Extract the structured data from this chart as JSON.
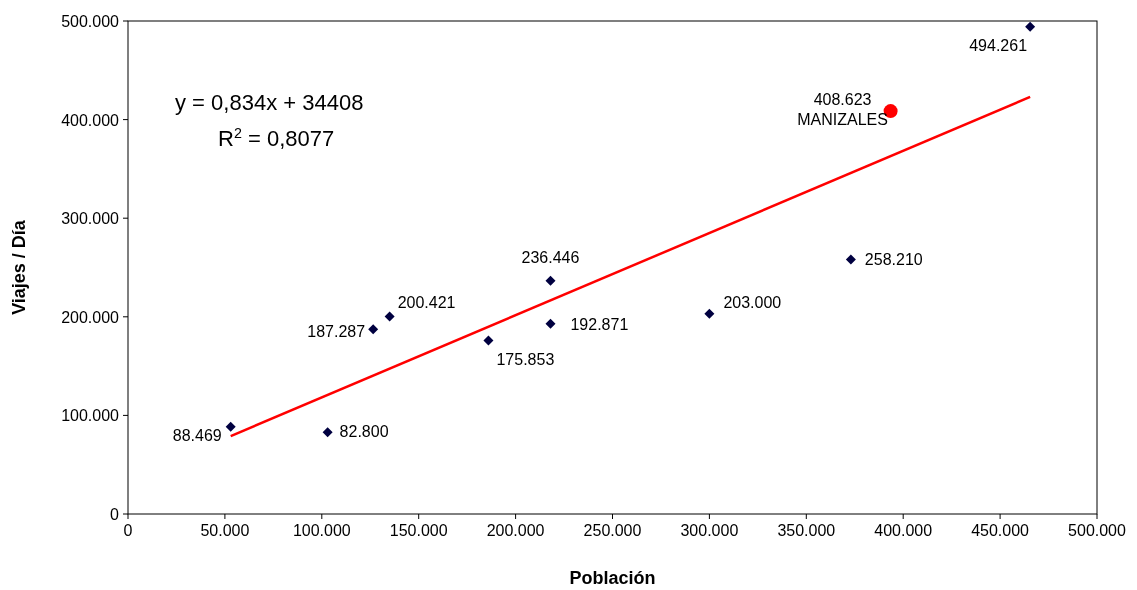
{
  "chart_data": {
    "type": "scatter",
    "xlabel": "Población",
    "ylabel": "Viajes / Día",
    "xlim": [
      0,
      500000
    ],
    "ylim": [
      0,
      500000
    ],
    "xticks": [
      0,
      {
        "value": 50000,
        "label": "50.000"
      },
      {
        "value": 100000,
        "label": "100.000"
      },
      {
        "value": 150000,
        "label": "150.000"
      },
      {
        "value": 200000,
        "label": "200.000"
      },
      {
        "value": 250000,
        "label": "250.000"
      },
      {
        "value": 300000,
        "label": "300.000"
      },
      {
        "value": 350000,
        "label": "350.000"
      },
      {
        "value": 400000,
        "label": "400.000"
      },
      {
        "value": 450000,
        "label": "450.000"
      },
      {
        "value": 500000,
        "label": "500.000"
      }
    ],
    "yticks": [
      0,
      {
        "value": 100000,
        "label": "100.000"
      },
      {
        "value": 200000,
        "label": "200.000"
      },
      {
        "value": 300000,
        "label": "300.000"
      },
      {
        "value": 400000,
        "label": "400.000"
      },
      {
        "value": 500000,
        "label": "500.000"
      }
    ],
    "grid": false,
    "series": [
      {
        "color": "#000040",
        "marker": "diamond",
        "x": [
          53000,
          103000,
          126500,
          135000,
          186000,
          218000,
          218000,
          300000,
          373000,
          465500
        ],
        "values": [
          88469,
          82800,
          187287,
          200421,
          175853,
          236446,
          192871,
          203000,
          258210,
          494261
        ],
        "value_labels": [
          "88.469",
          "82.800",
          "187.287",
          "200.421",
          "175.853",
          "236.446",
          "192.871",
          "203.000",
          "258.210",
          "494.261"
        ]
      },
      {
        "color": "#ff0000",
        "marker": "circle",
        "x": [
          393500
        ],
        "values": [
          408623
        ],
        "value_labels": [
          "408.623"
        ]
      },
      {
        "type": "line",
        "color": "#ff0000",
        "x": [
          53000,
          465500
        ],
        "values": [
          79000,
          423000
        ]
      }
    ],
    "annotations": [
      "y = 0,834x + 34408",
      "R$^{2}$ = 0,8077",
      {
        "text": "MANIZALES",
        "x": 393500,
        "y": 408623
      }
    ]
  }
}
